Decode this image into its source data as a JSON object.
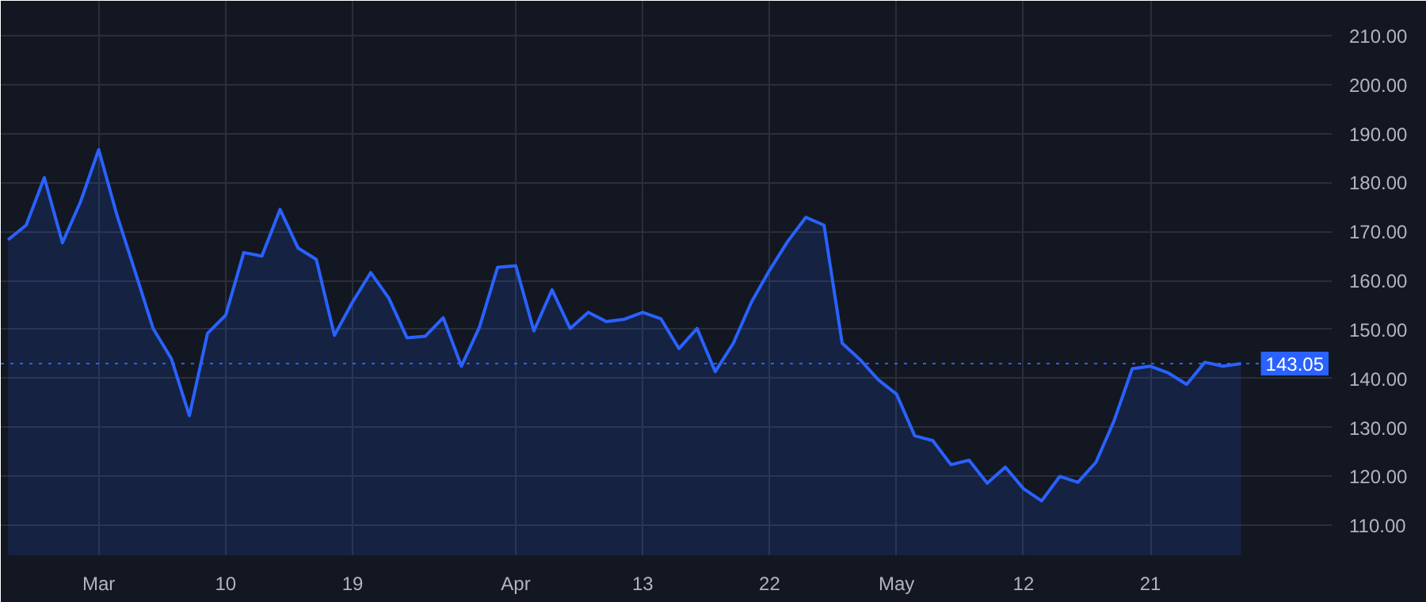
{
  "chart_data": {
    "type": "area",
    "categories": [
      null,
      null,
      null,
      null,
      null,
      "Mar",
      null,
      null,
      null,
      null,
      null,
      null,
      "10",
      null,
      null,
      null,
      null,
      null,
      null,
      "19",
      null,
      null,
      null,
      null,
      null,
      null,
      null,
      null,
      "Apr",
      null,
      null,
      null,
      null,
      null,
      null,
      "13",
      null,
      null,
      null,
      null,
      null,
      null,
      "22",
      null,
      null,
      null,
      null,
      null,
      null,
      "May",
      null,
      null,
      null,
      null,
      null,
      null,
      "12",
      null,
      null,
      null,
      null,
      null,
      null,
      "21",
      null,
      null,
      null,
      null,
      null
    ],
    "series": [
      {
        "color": "#2962ff",
        "values": [
          168.3,
          171.3,
          181.0,
          167.7,
          176.1,
          186.7,
          173.4,
          161.9,
          150.2,
          144.1,
          132.4,
          149.2,
          152.9,
          165.7,
          165.0,
          174.5,
          166.6,
          164.3,
          148.8,
          155.6,
          161.6,
          156.4,
          148.3,
          148.6,
          152.4,
          142.5,
          150.5,
          162.7,
          163.0,
          149.7,
          158.1,
          150.2,
          153.5,
          151.6,
          152.1,
          153.5,
          152.2,
          146.1,
          150.2,
          141.4,
          147.2,
          155.6,
          162.1,
          168.0,
          172.9,
          171.3,
          147.2,
          143.8,
          139.7,
          136.8,
          128.3,
          127.3,
          122.4,
          123.3,
          118.6,
          121.9,
          117.5,
          115.0,
          120.0,
          118.8,
          122.9,
          131.4,
          142.0,
          142.5,
          141.1,
          138.8,
          143.3,
          142.5,
          143.05
        ]
      }
    ],
    "ylim": [
      103.9,
      217.1
    ],
    "yticks": [
      {
        "value": 110,
        "label": "110.00"
      },
      {
        "value": 120,
        "label": "120.00"
      },
      {
        "value": 130,
        "label": "130.00"
      },
      {
        "value": 140,
        "label": "140.00"
      },
      {
        "value": 150,
        "label": "150.00"
      },
      {
        "value": 160,
        "label": "160.00"
      },
      {
        "value": 170,
        "label": "170.00"
      },
      {
        "value": 180,
        "label": "180.00"
      },
      {
        "value": 190,
        "label": "190.00"
      },
      {
        "value": 200,
        "label": "200.00"
      },
      {
        "value": 210,
        "label": "210.00"
      }
    ],
    "ref_lines": [
      {
        "axis": "y",
        "value": 143.05,
        "label": "143.05",
        "color": "#2962ff",
        "line_style": "dotted"
      }
    ],
    "grid": true
  }
}
